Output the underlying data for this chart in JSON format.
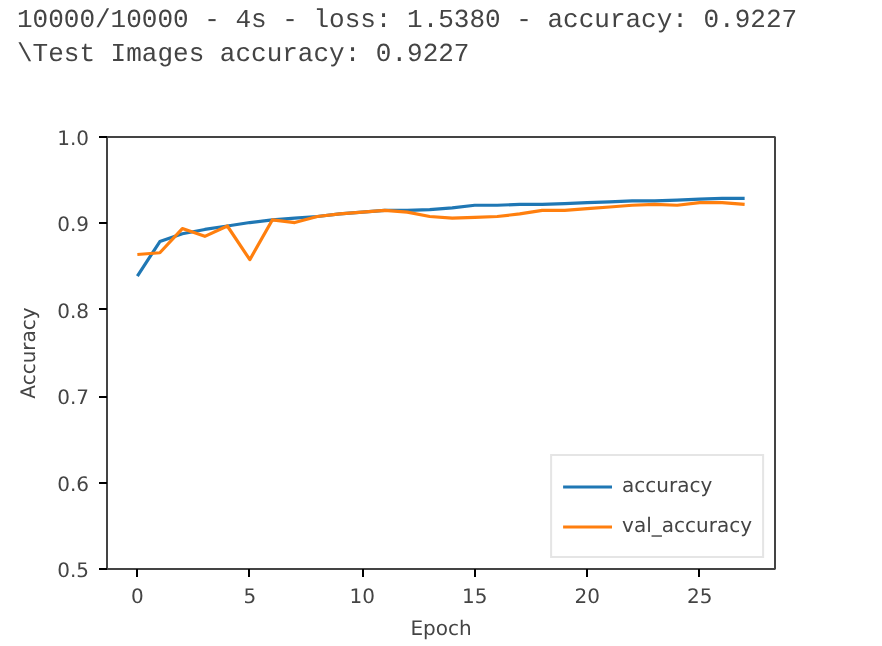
{
  "chart_data": {
    "type": "line",
    "xlabel": "Epoch",
    "ylabel": "Accuracy",
    "annotations": [
      "10000/10000 - 4s - loss: 1.5380 - accuracy: 0.9227",
      "\\Test Images accuracy: 0.9227"
    ],
    "x": [
      0,
      1,
      2,
      3,
      4,
      5,
      6,
      7,
      8,
      9,
      10,
      11,
      12,
      13,
      14,
      15,
      16,
      17,
      18,
      19,
      20,
      21,
      22,
      23,
      24,
      25,
      26,
      27
    ],
    "series": [
      {
        "name": "accuracy",
        "color": "#1f77b4",
        "values": [
          0.839,
          0.879,
          0.888,
          0.893,
          0.897,
          0.901,
          0.904,
          0.906,
          0.908,
          0.911,
          0.913,
          0.915,
          0.915,
          0.916,
          0.918,
          0.921,
          0.921,
          0.922,
          0.922,
          0.923,
          0.924,
          0.925,
          0.926,
          0.926,
          0.927,
          0.928,
          0.929,
          0.929
        ]
      },
      {
        "name": "val_accuracy",
        "color": "#ff7f0e",
        "values": [
          0.864,
          0.866,
          0.894,
          0.885,
          0.897,
          0.858,
          0.904,
          0.901,
          0.908,
          0.911,
          0.913,
          0.915,
          0.913,
          0.908,
          0.906,
          0.907,
          0.908,
          0.911,
          0.915,
          0.915,
          0.917,
          0.919,
          0.921,
          0.922,
          0.921,
          0.924,
          0.924,
          0.922
        ]
      }
    ],
    "xlim": [
      -1.35,
      28.35
    ],
    "ylim": [
      0.5,
      1.0
    ],
    "xticks": [
      0,
      5,
      10,
      15,
      20,
      25
    ],
    "yticks": [
      0.5,
      0.6,
      0.7,
      0.8,
      0.9,
      {
        "value": 1,
        "label": "1.0"
      }
    ],
    "grid": false,
    "legend": "bottom right",
    "marker": "none",
    "line_style": "solid"
  }
}
